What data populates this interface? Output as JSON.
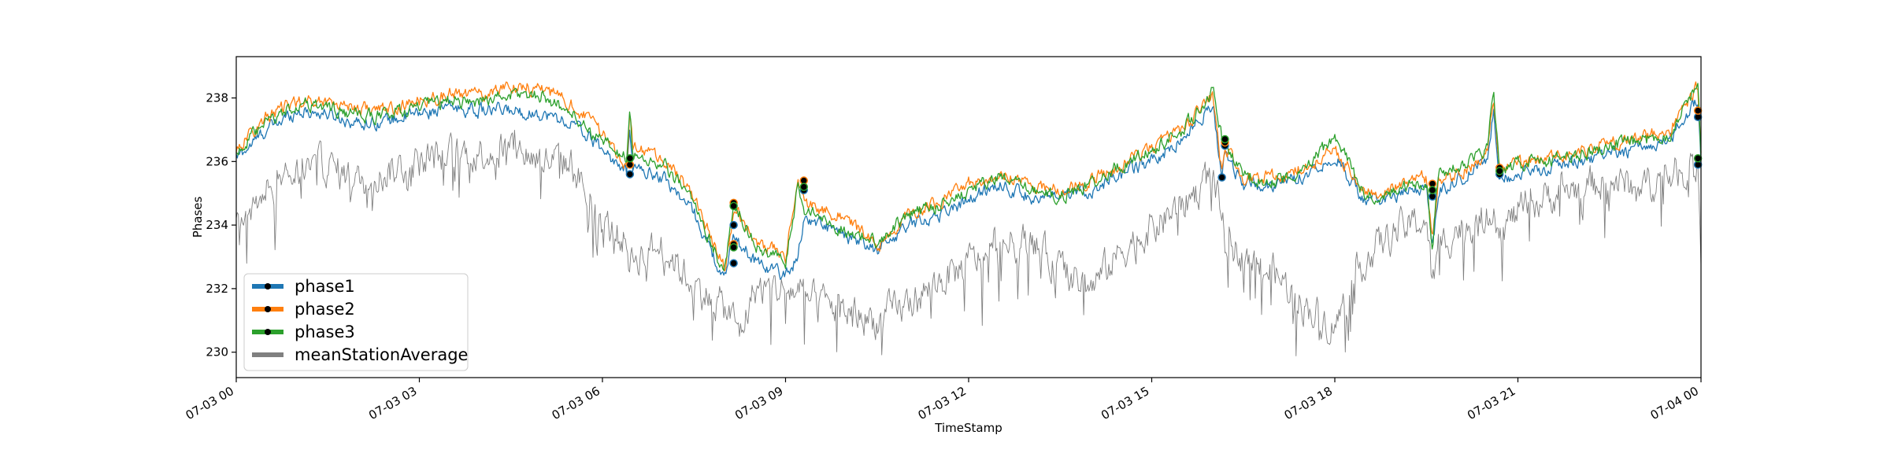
{
  "chart_data": {
    "type": "line",
    "title": "",
    "xlabel": "TimeStamp",
    "ylabel": "Phases",
    "xlim": [
      "07-03 00:00",
      "07-04 00:00"
    ],
    "ylim": [
      229.2,
      239.3
    ],
    "x_ticks": [
      "07-03 00",
      "07-03 03",
      "07-03 06",
      "07-03 09",
      "07-03 12",
      "07-03 15",
      "07-03 18",
      "07-03 21",
      "07-04 00"
    ],
    "y_ticks": [
      230,
      232,
      234,
      236,
      238
    ],
    "grid": false,
    "legend_position": "lower-left",
    "x_hours": [
      0,
      0.5,
      1,
      1.5,
      2,
      2.5,
      3,
      3.5,
      4,
      4.5,
      5,
      5.5,
      6,
      6.4,
      6.45,
      6.5,
      7,
      7.5,
      8,
      8.15,
      8.25,
      8.5,
      9,
      9.2,
      9.3,
      9.5,
      10,
      10.5,
      11,
      11.5,
      12,
      12.5,
      13,
      13.5,
      14,
      14.5,
      15,
      15.5,
      16,
      16.15,
      16.2,
      16.5,
      17,
      17.5,
      18,
      18.5,
      19,
      19.5,
      19.6,
      19.7,
      20,
      20.5,
      20.6,
      20.7,
      21,
      21.5,
      22,
      22.5,
      23,
      23.5,
      23.95,
      24
    ],
    "series": [
      {
        "name": "phase1",
        "color": "#1f77b4",
        "values": [
          236.1,
          237.0,
          237.6,
          237.5,
          237.2,
          237.3,
          237.5,
          237.7,
          237.6,
          237.6,
          237.5,
          237.2,
          236.4,
          235.6,
          237.0,
          235.8,
          235.5,
          234.4,
          232.2,
          233.8,
          233.4,
          232.9,
          232.4,
          233.0,
          234.2,
          234.1,
          233.6,
          233.2,
          234.0,
          234.3,
          234.8,
          235.3,
          234.9,
          234.8,
          235.1,
          235.6,
          236.0,
          236.7,
          237.8,
          235.5,
          236.3,
          235.3,
          235.2,
          235.6,
          236.2,
          234.7,
          234.9,
          235.2,
          233.2,
          235.1,
          235.4,
          236.0,
          237.7,
          235.5,
          235.6,
          235.8,
          236.0,
          236.2,
          236.4,
          236.7,
          238.0,
          236.0
        ]
      },
      {
        "name": "phase2",
        "color": "#ff7f0e",
        "values": [
          236.4,
          237.4,
          237.9,
          237.9,
          237.7,
          237.6,
          237.9,
          238.1,
          238.1,
          238.4,
          238.3,
          237.8,
          236.9,
          235.9,
          237.7,
          236.4,
          236.1,
          234.9,
          232.6,
          234.4,
          234.3,
          233.5,
          233.0,
          235.4,
          234.7,
          234.6,
          234.2,
          233.3,
          234.3,
          234.7,
          235.3,
          235.6,
          235.3,
          235.1,
          235.4,
          235.9,
          236.4,
          237.0,
          238.1,
          235.6,
          236.5,
          235.5,
          235.5,
          235.8,
          236.4,
          235.0,
          235.2,
          235.5,
          233.6,
          235.4,
          235.6,
          236.2,
          238.0,
          235.8,
          235.9,
          236.1,
          236.3,
          236.6,
          236.7,
          237.0,
          238.4,
          236.4
        ]
      },
      {
        "name": "phase3",
        "color": "#2ca02c",
        "values": [
          236.3,
          237.2,
          237.8,
          237.7,
          237.4,
          237.5,
          237.7,
          237.9,
          237.9,
          238.1,
          238.1,
          237.5,
          236.6,
          236.1,
          237.6,
          236.2,
          235.9,
          234.7,
          232.5,
          234.7,
          234.4,
          233.3,
          232.8,
          235.2,
          234.5,
          234.3,
          233.8,
          233.5,
          234.3,
          234.6,
          235.1,
          235.5,
          235.1,
          234.9,
          235.3,
          235.9,
          236.3,
          237.0,
          238.2,
          236.7,
          236.5,
          235.5,
          235.4,
          235.7,
          236.8,
          234.9,
          235.1,
          235.4,
          233.4,
          235.7,
          235.8,
          236.4,
          238.2,
          235.7,
          235.9,
          236.0,
          236.2,
          236.5,
          236.6,
          236.9,
          238.5,
          236.2
        ]
      },
      {
        "name": "meanStationAverage",
        "color": "#808080",
        "values": [
          234.0,
          235.2,
          235.6,
          235.9,
          235.3,
          235.7,
          236.0,
          236.2,
          236.3,
          236.4,
          236.1,
          235.9,
          234.0,
          233.5,
          232.8,
          233.0,
          233.3,
          232.1,
          231.4,
          231.0,
          230.6,
          232.0,
          232.0,
          231.9,
          231.7,
          231.6,
          231.3,
          231.0,
          231.5,
          232.2,
          232.8,
          233.3,
          233.5,
          232.6,
          232.0,
          233.2,
          233.9,
          234.6,
          235.6,
          234.2,
          233.5,
          233.0,
          232.5,
          231.5,
          230.8,
          233.0,
          233.8,
          234.2,
          232.0,
          233.3,
          233.9,
          234.2,
          234.8,
          233.8,
          234.4,
          234.9,
          235.2,
          235.4,
          235.2,
          235.6,
          235.9,
          233.0
        ]
      }
    ],
    "markers": {
      "phase1": [
        [
          6.45,
          235.6
        ],
        [
          8.15,
          232.8
        ],
        [
          8.15,
          234.0
        ],
        [
          9.3,
          235.1
        ],
        [
          16.15,
          235.5
        ],
        [
          16.2,
          236.5
        ],
        [
          19.6,
          234.9
        ],
        [
          20.7,
          235.6
        ],
        [
          23.95,
          237.4
        ],
        [
          23.95,
          235.9
        ]
      ],
      "phase2": [
        [
          6.45,
          235.9
        ],
        [
          8.15,
          233.4
        ],
        [
          8.15,
          234.7
        ],
        [
          9.3,
          235.4
        ],
        [
          16.2,
          236.6
        ],
        [
          19.6,
          235.3
        ],
        [
          20.7,
          235.8
        ],
        [
          23.95,
          237.6
        ]
      ],
      "phase3": [
        [
          6.45,
          236.1
        ],
        [
          8.15,
          233.3
        ],
        [
          8.15,
          234.6
        ],
        [
          9.3,
          235.2
        ],
        [
          16.2,
          236.7
        ],
        [
          19.6,
          235.1
        ],
        [
          20.7,
          235.7
        ],
        [
          23.95,
          236.1
        ]
      ]
    }
  }
}
